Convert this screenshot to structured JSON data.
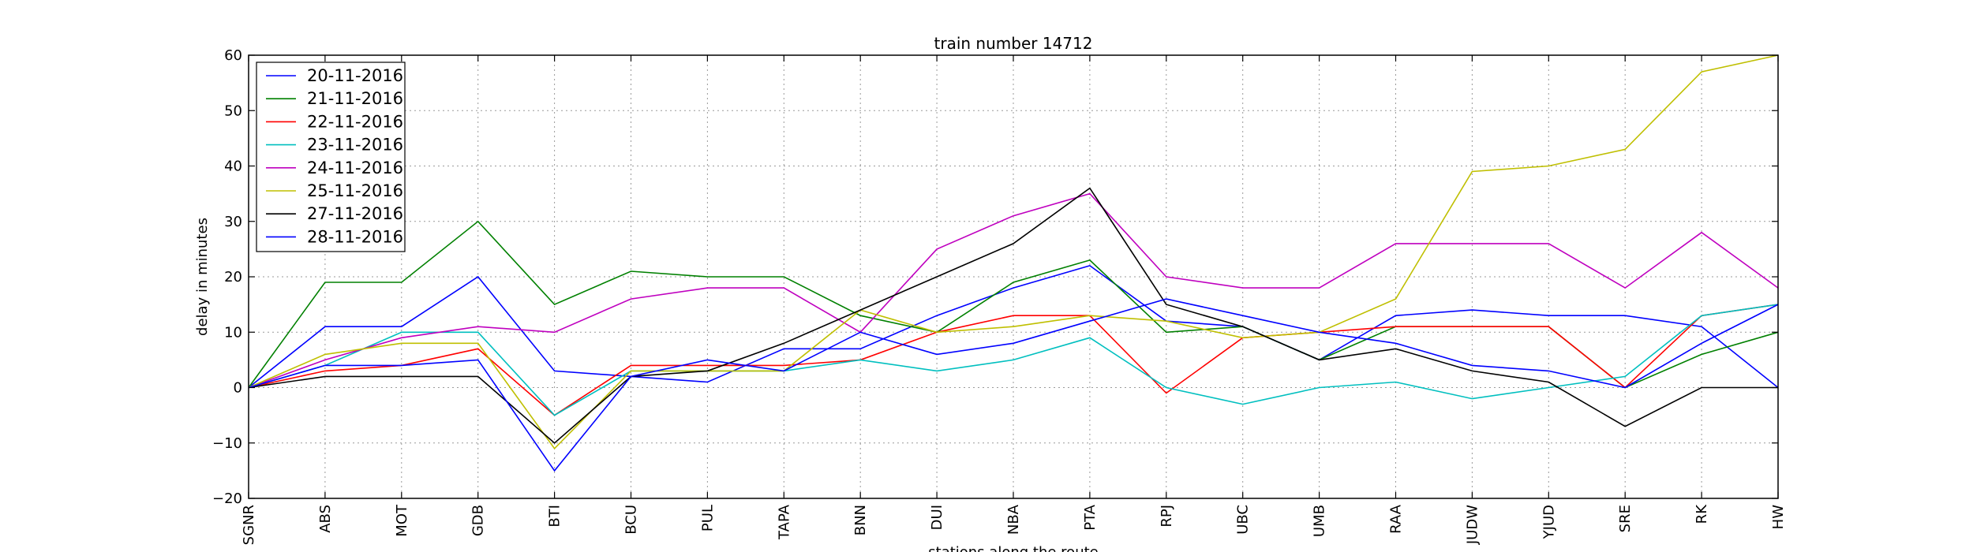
{
  "chart_data": {
    "type": "line",
    "title": "train number 14712",
    "xlabel": "stations along the route",
    "ylabel": "delay in minutes",
    "ylim": [
      -20,
      60
    ],
    "yticks": [
      -20,
      -10,
      0,
      10,
      20,
      30,
      40,
      50,
      60
    ],
    "grid": true,
    "legend_position": "top-left",
    "categories": [
      "SGNR",
      "ABS",
      "MOT",
      "GDB",
      "BTI",
      "BCU",
      "PUL",
      "TAPA",
      "BNN",
      "DUI",
      "NBA",
      "PTA",
      "RPJ",
      "UBC",
      "UMB",
      "RAA",
      "JUDW",
      "YJUD",
      "SRE",
      "RK",
      "HW"
    ],
    "series": [
      {
        "name": "20-11-2016",
        "color": "#0000ff",
        "values": [
          0,
          11,
          11,
          20,
          3,
          2,
          1,
          7,
          7,
          13,
          18,
          22,
          12,
          11,
          5,
          13,
          14,
          13,
          13,
          11,
          0
        ]
      },
      {
        "name": "21-11-2016",
        "color": "#008000",
        "values": [
          0,
          19,
          19,
          30,
          15,
          21,
          20,
          20,
          13,
          10,
          19,
          23,
          10,
          11,
          5,
          11,
          11,
          11,
          0,
          6,
          10
        ]
      },
      {
        "name": "22-11-2016",
        "color": "#ff0000",
        "values": [
          0,
          3,
          4,
          7,
          -5,
          4,
          4,
          4,
          5,
          10,
          13,
          13,
          -1,
          9,
          10,
          11,
          11,
          11,
          0,
          13,
          15
        ]
      },
      {
        "name": "23-11-2016",
        "color": "#00bfbf",
        "values": [
          0,
          4,
          10,
          10,
          -5,
          3,
          3,
          3,
          5,
          3,
          5,
          9,
          0,
          -3,
          0,
          1,
          -2,
          0,
          2,
          13,
          15
        ]
      },
      {
        "name": "24-11-2016",
        "color": "#bf00bf",
        "values": [
          0,
          5,
          9,
          11,
          10,
          16,
          18,
          18,
          10,
          25,
          31,
          35,
          20,
          18,
          18,
          26,
          26,
          26,
          18,
          28,
          18
        ]
      },
      {
        "name": "25-11-2016",
        "color": "#bfbf00",
        "values": [
          0,
          6,
          8,
          8,
          -11,
          3,
          3,
          3,
          14,
          10,
          11,
          13,
          12,
          9,
          10,
          16,
          39,
          40,
          43,
          57,
          60
        ]
      },
      {
        "name": "27-11-2016",
        "color": "#000000",
        "values": [
          0,
          2,
          2,
          2,
          -10,
          2,
          3,
          8,
          14,
          20,
          26,
          36,
          15,
          11,
          5,
          7,
          3,
          1,
          -7,
          0,
          0
        ]
      },
      {
        "name": "28-11-2016",
        "color": "#0000ff",
        "values": [
          0,
          4,
          4,
          5,
          -15,
          2,
          5,
          3,
          10,
          6,
          8,
          12,
          16,
          13,
          10,
          8,
          4,
          3,
          0,
          8,
          15
        ]
      }
    ]
  }
}
